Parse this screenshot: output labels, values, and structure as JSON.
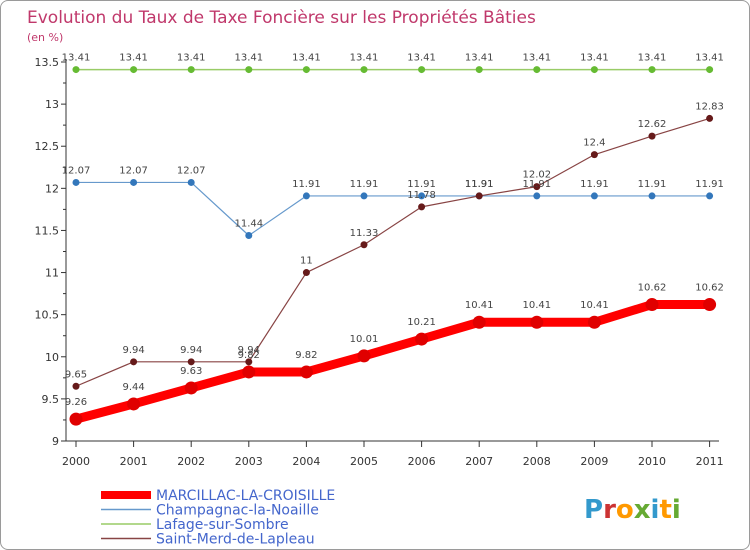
{
  "chart_data": {
    "type": "line",
    "title": "Evolution du Taux de Taxe Foncière sur les Propriétés Bâties",
    "subtitle": "(en %)",
    "x": [
      "2000",
      "2001",
      "2002",
      "2003",
      "2004",
      "2005",
      "2006",
      "2007",
      "2008",
      "2009",
      "2010",
      "2011"
    ],
    "ylim": [
      9,
      13.5
    ],
    "yticks": [
      "9",
      "9.5",
      "10",
      "10.5",
      "11",
      "11.5",
      "12",
      "12.5",
      "13",
      "13.5"
    ],
    "grid": false,
    "legend_position": "bottom-left",
    "series": [
      {
        "name": "MARCILLAC-LA-CROISILLE",
        "color": "#ff0000",
        "marker_color": "#e00000",
        "values": [
          9.26,
          9.44,
          9.63,
          9.82,
          9.82,
          10.01,
          10.21,
          10.41,
          10.41,
          10.41,
          10.62,
          10.62
        ],
        "labels": [
          "9.26",
          "9.44",
          "9.63",
          "9.82",
          "9.82",
          "10.01",
          "10.21",
          "10.41",
          "10.41",
          "10.41",
          "10.62",
          "10.62"
        ]
      },
      {
        "name": "Champagnac-la-Noaille",
        "color": "#6699cc",
        "marker_color": "#3377bb",
        "values": [
          12.07,
          12.07,
          12.07,
          11.44,
          11.91,
          11.91,
          11.91,
          11.91,
          11.91,
          11.91,
          11.91,
          11.91
        ],
        "labels": [
          "12.07",
          "12.07",
          "12.07",
          "11.44",
          "11.91",
          "11.91",
          "11.91",
          "11.91",
          "11.91",
          "11.91",
          "11.91",
          "11.91"
        ]
      },
      {
        "name": "Lafage-sur-Sombre",
        "color": "#99cc66",
        "marker_color": "#66bb33",
        "values": [
          13.41,
          13.41,
          13.41,
          13.41,
          13.41,
          13.41,
          13.41,
          13.41,
          13.41,
          13.41,
          13.41,
          13.41
        ],
        "labels": [
          "13.41",
          "13.41",
          "13.41",
          "13.41",
          "13.41",
          "13.41",
          "13.41",
          "13.41",
          "13.41",
          "13.41",
          "13.41",
          "13.41"
        ]
      },
      {
        "name": "Saint-Merd-de-Lapleau",
        "color": "#884444",
        "marker_color": "#661a1a",
        "values": [
          9.65,
          9.94,
          9.94,
          9.94,
          11.0,
          11.33,
          11.78,
          11.91,
          12.02,
          12.4,
          12.62,
          12.83
        ],
        "labels": [
          "9.65",
          "9.94",
          "9.94",
          "9.94",
          "11",
          "11.33",
          "11.78",
          "11.91",
          "12.02",
          "12.4",
          "12.62",
          "12.83"
        ]
      }
    ]
  },
  "logo": {
    "text": "Proxiti",
    "colors": [
      "#3399cc",
      "#cc3333",
      "#ff9900",
      "#66aa33",
      "#3399cc",
      "#ff9900",
      "#66aa33"
    ]
  }
}
